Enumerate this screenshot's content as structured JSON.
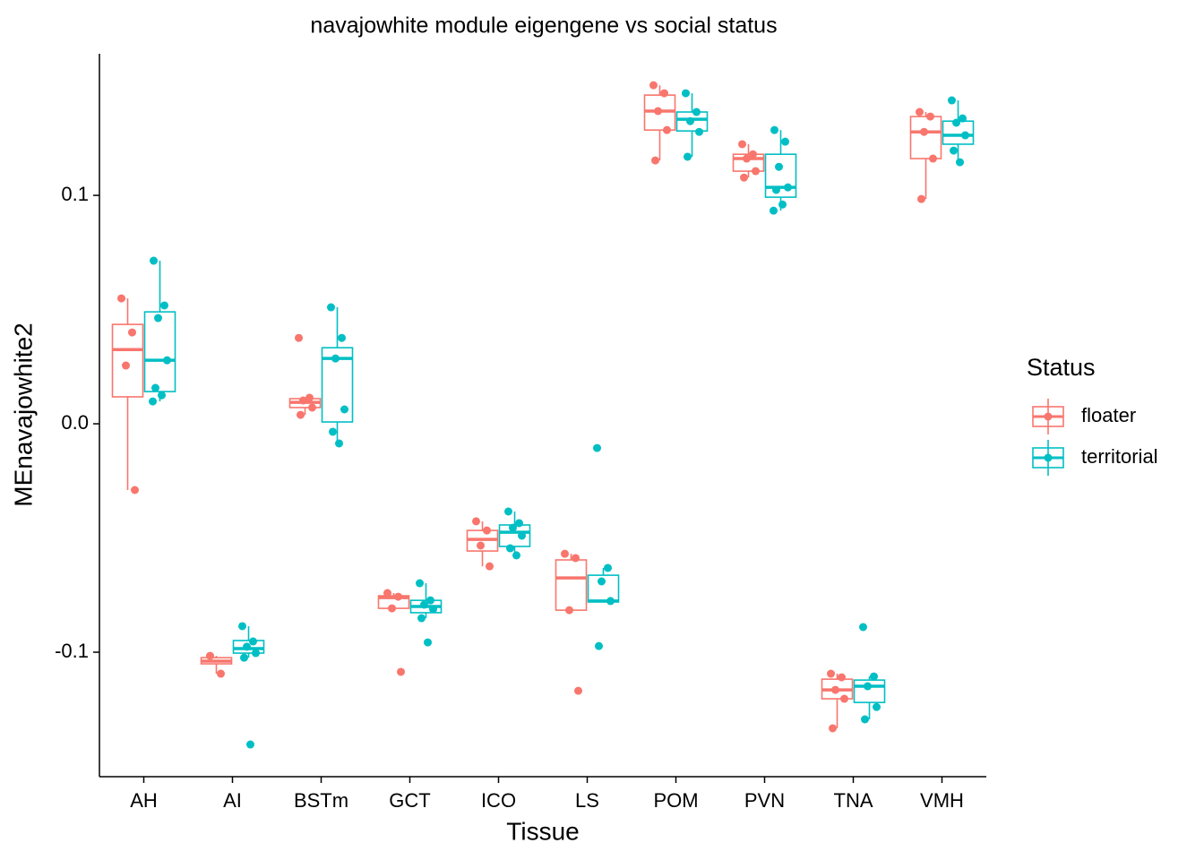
{
  "chart_data": {
    "type": "box",
    "title": "navajowhite module eigengene vs social status",
    "x_label": "Tissue",
    "y_label": "MEnavajowhite2",
    "legend_title": "Status",
    "legend_position": "right",
    "categories": [
      "AH",
      "AI",
      "BSTm",
      "GCT",
      "ICO",
      "LS",
      "POM",
      "PVN",
      "TNA",
      "VMH"
    ],
    "ylim": [
      -0.1545,
      0.162
    ],
    "yticks": [
      {
        "value": -0.1,
        "label": "-0.1"
      },
      {
        "value": 0,
        "label": "0.0"
      },
      0.1
    ],
    "series": [
      {
        "name": "floater",
        "color": "#F8766D",
        "boxes": [
          {
            "min": -0.029,
            "q1": 0.0118,
            "median": 0.0325,
            "q3": 0.0435,
            "max": 0.0549,
            "points": [
              0.0549,
              0.04,
              0.0255,
              -0.029
            ]
          },
          {
            "min": -0.1094,
            "q1": -0.1051,
            "median": -0.1039,
            "q3": -0.1024,
            "max": -0.1016,
            "points": [
              -0.1016,
              -0.1094
            ]
          },
          {
            "min": 0.0039,
            "q1": 0.0071,
            "median": 0.0094,
            "q3": 0.011,
            "max": 0.011,
            "points": [
              0.0376,
              0.0114,
              0.0102,
              0.0071,
              0.0039
            ]
          },
          {
            "min": -0.0808,
            "q1": -0.0808,
            "median": -0.0761,
            "q3": -0.0753,
            "max": -0.0741,
            "points": [
              -0.0741,
              -0.0757,
              -0.0808,
              -0.1086
            ]
          },
          {
            "min": -0.0624,
            "q1": -0.0557,
            "median": -0.0506,
            "q3": -0.0467,
            "max": -0.0427,
            "points": [
              -0.0427,
              -0.0467,
              -0.0533,
              -0.0624
            ]
          },
          {
            "min": -0.0816,
            "q1": -0.0816,
            "median": -0.0675,
            "q3": -0.0596,
            "max": -0.0569,
            "points": [
              -0.0569,
              -0.0588,
              -0.0816,
              -0.1169
            ]
          },
          {
            "min": 0.1153,
            "q1": 0.1286,
            "median": 0.1369,
            "q3": 0.1439,
            "max": 0.1482,
            "points": [
              0.1482,
              0.1447,
              0.1369,
              0.1286,
              0.1153
            ]
          },
          {
            "min": 0.1078,
            "q1": 0.1106,
            "median": 0.1161,
            "q3": 0.118,
            "max": 0.1224,
            "points": [
              0.1224,
              0.118,
              0.1161,
              0.1106,
              0.1078
            ]
          },
          {
            "min": -0.1333,
            "q1": -0.1204,
            "median": -0.1165,
            "q3": -0.1118,
            "max": -0.1094,
            "points": [
              -0.1094,
              -0.111,
              -0.1165,
              -0.1204,
              -0.1333
            ]
          },
          {
            "min": 0.0984,
            "q1": 0.1161,
            "median": 0.1278,
            "q3": 0.1345,
            "max": 0.1365,
            "points": [
              0.1365,
              0.1345,
              0.1278,
              0.1161,
              0.0984
            ]
          }
        ]
      },
      {
        "name": "territorial",
        "color": "#00BFC4",
        "boxes": [
          {
            "min": 0.0098,
            "q1": 0.0141,
            "median": 0.0278,
            "q3": 0.049,
            "max": 0.0714,
            "points": [
              0.0714,
              0.0518,
              0.0463,
              0.0278,
              0.0157,
              0.0125,
              0.0098
            ]
          },
          {
            "min": -0.1024,
            "q1": -0.1004,
            "median": -0.0984,
            "q3": -0.0949,
            "max": -0.0886,
            "points": [
              -0.0886,
              -0.0953,
              -0.0976,
              -0.1004,
              -0.1024,
              -0.1404
            ]
          },
          {
            "min": -0.0086,
            "q1": 0.0008,
            "median": 0.0286,
            "q3": 0.0333,
            "max": 0.051,
            "points": [
              0.051,
              0.0376,
              0.0286,
              0.0063,
              -0.0035,
              -0.0086
            ]
          },
          {
            "min": -0.0851,
            "q1": -0.0827,
            "median": -0.08,
            "q3": -0.0773,
            "max": -0.0698,
            "points": [
              -0.0698,
              -0.0773,
              -0.0792,
              -0.0812,
              -0.0851,
              -0.0957
            ]
          },
          {
            "min": -0.0576,
            "q1": -0.0537,
            "median": -0.0475,
            "q3": -0.0443,
            "max": -0.0384,
            "points": [
              -0.0384,
              -0.0435,
              -0.0455,
              -0.049,
              -0.0545,
              -0.0576
            ]
          },
          {
            "min": -0.078,
            "q1": -0.078,
            "median": -0.0776,
            "q3": -0.0663,
            "max": -0.0631,
            "points": [
              -0.0106,
              -0.0631,
              -0.069,
              -0.0776,
              -0.0973
            ]
          },
          {
            "min": 0.1169,
            "q1": 0.1282,
            "median": 0.1333,
            "q3": 0.1365,
            "max": 0.1447,
            "points": [
              0.1447,
              0.1365,
              0.1325,
              0.1278,
              0.1169
            ]
          },
          {
            "min": 0.0933,
            "q1": 0.0992,
            "median": 0.1035,
            "q3": 0.118,
            "max": 0.1286,
            "points": [
              0.1286,
              0.1235,
              0.1125,
              0.1035,
              0.1024,
              0.096,
              0.0933
            ]
          },
          {
            "min": -0.1294,
            "q1": -0.122,
            "median": -0.1149,
            "q3": -0.1122,
            "max": -0.1106,
            "points": [
              -0.089,
              -0.1106,
              -0.1149,
              -0.124,
              -0.1294
            ]
          },
          {
            "min": 0.1145,
            "q1": 0.1224,
            "median": 0.1263,
            "q3": 0.1325,
            "max": 0.1416,
            "points": [
              0.1416,
              0.1337,
              0.1318,
              0.1263,
              0.1196,
              0.1145
            ]
          }
        ]
      }
    ]
  }
}
